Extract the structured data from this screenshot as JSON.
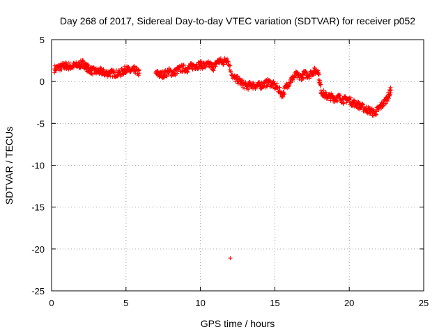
{
  "chart_data": {
    "type": "scatter",
    "title": "Day 268 of 2017, Sidereal Day-to-day VTEC variation (SDTVAR) for receiver p052",
    "xlabel": "GPS time / hours",
    "ylabel": "SDTVAR / TECUs",
    "xlim": [
      0,
      25
    ],
    "ylim": [
      -25,
      5
    ],
    "xticks": [
      0,
      5,
      10,
      15,
      20,
      25
    ],
    "yticks": [
      5,
      0,
      -5,
      -10,
      -15,
      -20,
      -25
    ],
    "grid": true,
    "marker": "+",
    "color": "#ff0000",
    "series": [
      {
        "name": "SDTVAR p052",
        "x": [
          0.2,
          0.5,
          0.8,
          1.0,
          1.3,
          1.6,
          1.9,
          2.1,
          2.3,
          2.5,
          2.7,
          3.0,
          3.3,
          3.6,
          3.9,
          4.2,
          4.5,
          4.8,
          5.0,
          5.3,
          5.6,
          5.9,
          7.0,
          7.3,
          7.6,
          7.9,
          8.2,
          8.5,
          8.8,
          9.1,
          9.4,
          9.7,
          10.0,
          10.3,
          10.6,
          10.9,
          11.2,
          11.5,
          11.8,
          12.2,
          12.5,
          12.8,
          13.1,
          13.4,
          13.7,
          14.0,
          14.3,
          14.6,
          14.9,
          15.2,
          15.5,
          15.8,
          16.1,
          16.4,
          16.7,
          17.0,
          17.3,
          17.6,
          17.9,
          18.1,
          18.4,
          18.7,
          19.0,
          19.3,
          19.6,
          19.9,
          20.2,
          20.5,
          20.8,
          21.1,
          21.4,
          21.7,
          22.0,
          22.3,
          22.6,
          22.8,
          12.0
        ],
        "y": [
          1.5,
          1.7,
          1.8,
          1.9,
          1.8,
          1.9,
          2.0,
          2.2,
          1.8,
          1.5,
          1.3,
          1.2,
          1.2,
          1.0,
          1.0,
          1.0,
          0.9,
          1.2,
          1.5,
          1.2,
          1.4,
          1.0,
          1.0,
          0.8,
          0.9,
          1.2,
          1.0,
          1.4,
          1.6,
          1.5,
          1.8,
          1.9,
          2.0,
          1.9,
          2.0,
          1.7,
          2.5,
          2.3,
          2.7,
          0.5,
          0.2,
          -0.2,
          -0.6,
          -0.4,
          -0.5,
          -0.5,
          -0.3,
          -0.1,
          -0.4,
          -0.8,
          -1.6,
          -0.5,
          0.2,
          0.8,
          0.5,
          0.9,
          0.8,
          1.2,
          1.3,
          -1.1,
          -1.7,
          -1.8,
          -2.0,
          -1.9,
          -2.2,
          -2.1,
          -2.5,
          -2.7,
          -3.0,
          -3.3,
          -3.5,
          -3.8,
          -3.2,
          -2.6,
          -1.8,
          -1.0,
          -21.1
        ]
      }
    ]
  }
}
